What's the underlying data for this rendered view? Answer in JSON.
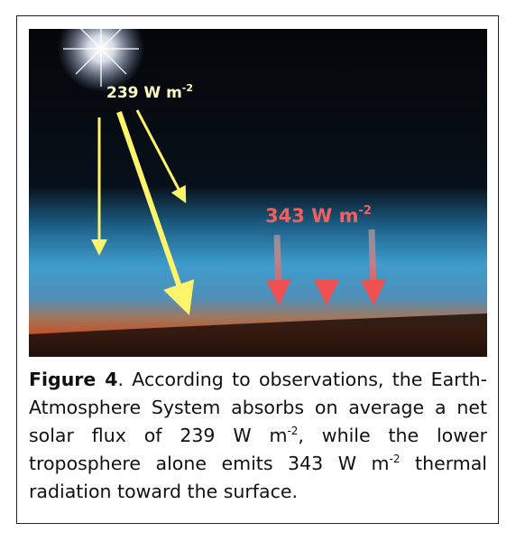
{
  "figure": {
    "image_labels": [
      {
        "text": "239 W m",
        "sup": "-2"
      },
      {
        "text": "343 W m",
        "sup": "-2"
      }
    ],
    "caption": {
      "label": "Figure 4",
      "parts": [
        ". According to observations, the Earth-Atmosphere System absorbs on average a net solar flux of 239 W m",
        "-2",
        ", while the lower troposphere alone emits 343 W m",
        "-2",
        " thermal radiation toward the surface."
      ]
    }
  }
}
